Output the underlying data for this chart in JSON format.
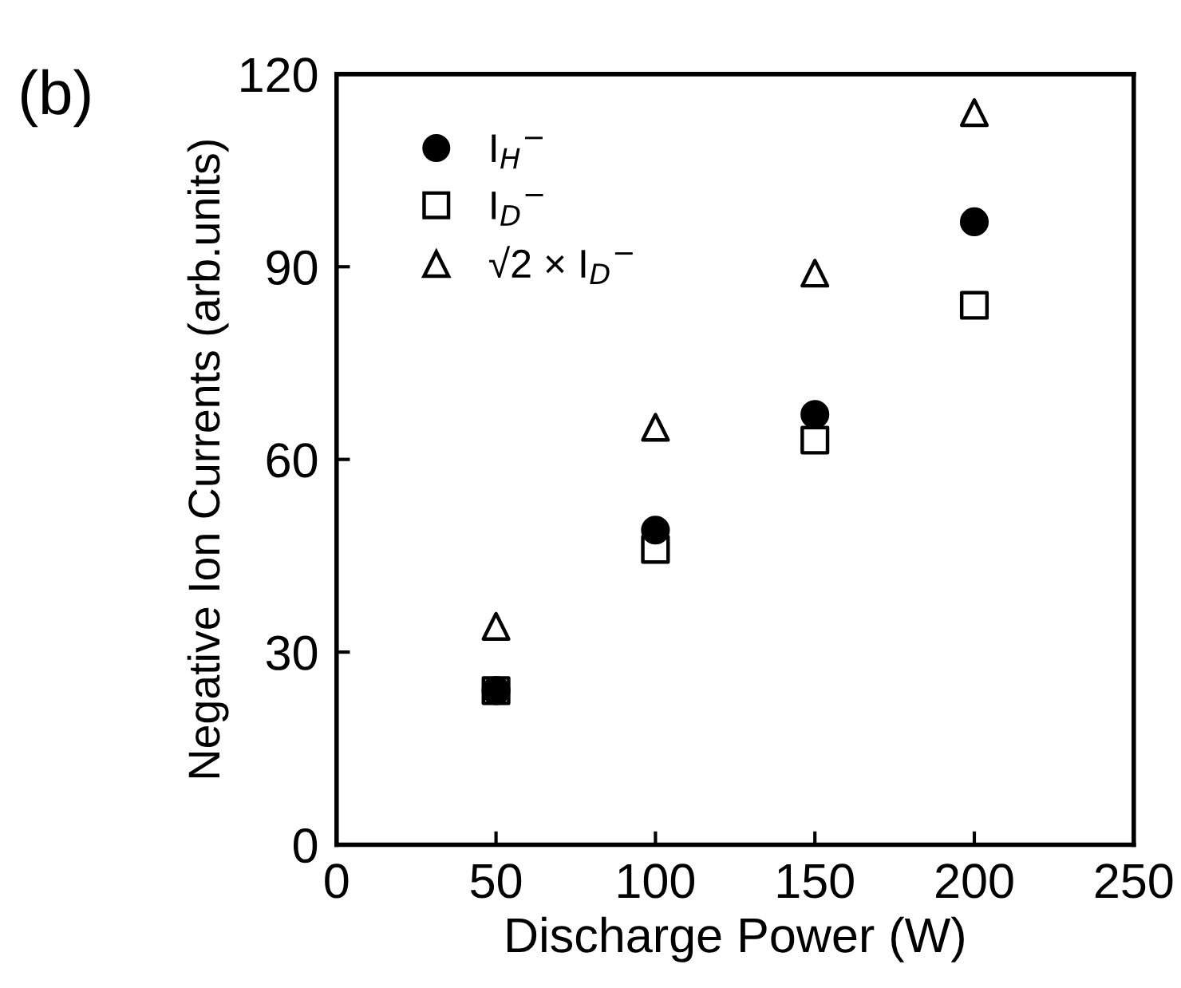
{
  "chart_data": {
    "type": "scatter",
    "xlabel": "Discharge Power (W)",
    "ylabel": "Negative Ion Currents (arb.units)",
    "annotations": [
      "(b)"
    ],
    "x": [
      50,
      100,
      150,
      200
    ],
    "series": [
      {
        "name": "I$_{H}$$^{−}$",
        "color": "#000000",
        "marker": "circle",
        "values": [
          24,
          49,
          67,
          97
        ]
      },
      {
        "name": "I$_{D}$$^{−}$",
        "color": "#000000",
        "marker": "square",
        "values": [
          24,
          46,
          63,
          84
        ]
      },
      {
        "name": "√2 × I$_{D}$$^{−}$",
        "color": "#000000",
        "marker": "triangle",
        "values": [
          34,
          65,
          89,
          114
        ]
      }
    ],
    "xlim": [
      0,
      250
    ],
    "xticks": [
      0,
      50,
      100,
      150,
      200,
      250
    ],
    "ylim": [
      0,
      120
    ],
    "yticks": [
      0,
      30,
      60,
      90,
      120
    ],
    "grid": false,
    "legend": "top left"
  }
}
